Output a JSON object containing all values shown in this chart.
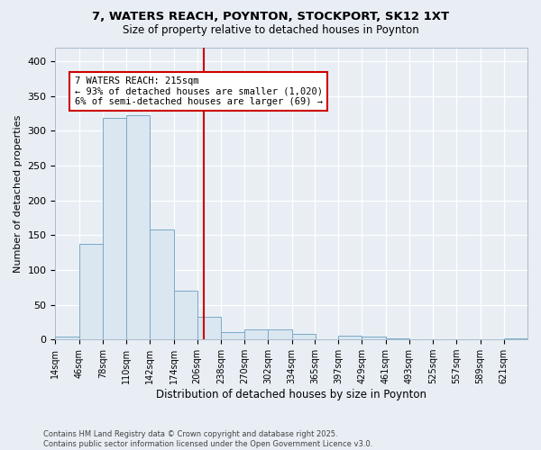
{
  "title1": "7, WATERS REACH, POYNTON, STOCKPORT, SK12 1XT",
  "title2": "Size of property relative to detached houses in Poynton",
  "xlabel": "Distribution of detached houses by size in Poynton",
  "ylabel": "Number of detached properties",
  "footnote1": "Contains HM Land Registry data © Crown copyright and database right 2025.",
  "footnote2": "Contains public sector information licensed under the Open Government Licence v3.0.",
  "bin_edges": [
    14,
    46,
    78,
    110,
    142,
    174,
    206,
    238,
    270,
    302,
    334,
    365,
    397,
    429,
    461,
    493,
    525,
    557,
    589,
    621,
    653
  ],
  "bar_heights": [
    4,
    138,
    318,
    322,
    158,
    70,
    33,
    11,
    15,
    14,
    8,
    0,
    5,
    4,
    1,
    0,
    0,
    0,
    0,
    2
  ],
  "bar_color": "#dae6f0",
  "bar_edge_color": "#7aaac8",
  "property_size": 215,
  "vline_color": "#cc0000",
  "annotation_line1": "7 WATERS REACH: 215sqm",
  "annotation_line2": "← 93% of detached houses are smaller (1,020)",
  "annotation_line3": "6% of semi-detached houses are larger (69) →",
  "annotation_box_color": "#ffffff",
  "annotation_border_color": "#cc0000",
  "ylim": [
    0,
    420
  ],
  "fig_bg_color": "#e8eef4",
  "plot_bg_color": "#e8eef4",
  "grid_color": "#ffffff",
  "yticks": [
    0,
    50,
    100,
    150,
    200,
    250,
    300,
    350,
    400
  ]
}
